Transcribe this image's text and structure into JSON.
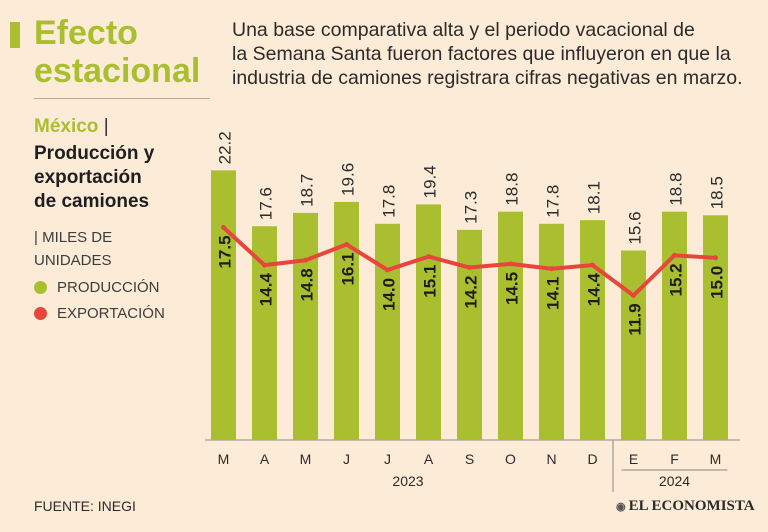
{
  "header": {
    "title_line1": "Efecto",
    "title_line2": "estacional",
    "intro_line1": "Una base comparativa alta y el periodo vacacional de",
    "intro_line2": "la Semana Santa fueron factores que influyeron en que la",
    "intro_line3": "industria de camiones registrara cifras negativas en marzo."
  },
  "sidebar": {
    "country": "México",
    "subtitle_line1": "Producción y",
    "subtitle_line2": "exportación",
    "subtitle_line3": "de camiones",
    "units_line1": "MILES DE",
    "units_line2": "UNIDADES",
    "legend": [
      {
        "label": "PRODUCCIÓN",
        "color": "#a9bf2f"
      },
      {
        "label": "EXPORTACIÓN",
        "color": "#e8453c"
      }
    ]
  },
  "footer": {
    "source": "FUENTE: INEGI",
    "logo": "EL ECONOMISTA"
  },
  "chart_data": {
    "type": "bar",
    "title": "México | Producción y exportación de camiones",
    "ylabel": "Miles de unidades",
    "categories": [
      "M",
      "A",
      "M",
      "J",
      "J",
      "A",
      "S",
      "O",
      "N",
      "D",
      "E",
      "F",
      "M"
    ],
    "year_groups": [
      {
        "label": "2023",
        "count": 10
      },
      {
        "label": "2024",
        "count": 3
      }
    ],
    "series": [
      {
        "name": "PRODUCCIÓN",
        "kind": "bar",
        "color": "#a9bf2f",
        "values": [
          22.2,
          17.6,
          18.7,
          19.6,
          17.8,
          19.4,
          17.3,
          18.8,
          17.8,
          18.1,
          15.6,
          18.8,
          18.5
        ]
      },
      {
        "name": "EXPORTACIÓN",
        "kind": "line",
        "color": "#e8453c",
        "values": [
          17.5,
          14.4,
          14.8,
          16.1,
          14.0,
          15.1,
          14.2,
          14.5,
          14.1,
          14.4,
          11.9,
          15.2,
          15.0
        ]
      }
    ],
    "ylim": [
      0,
      23.3
    ],
    "grid": false
  }
}
